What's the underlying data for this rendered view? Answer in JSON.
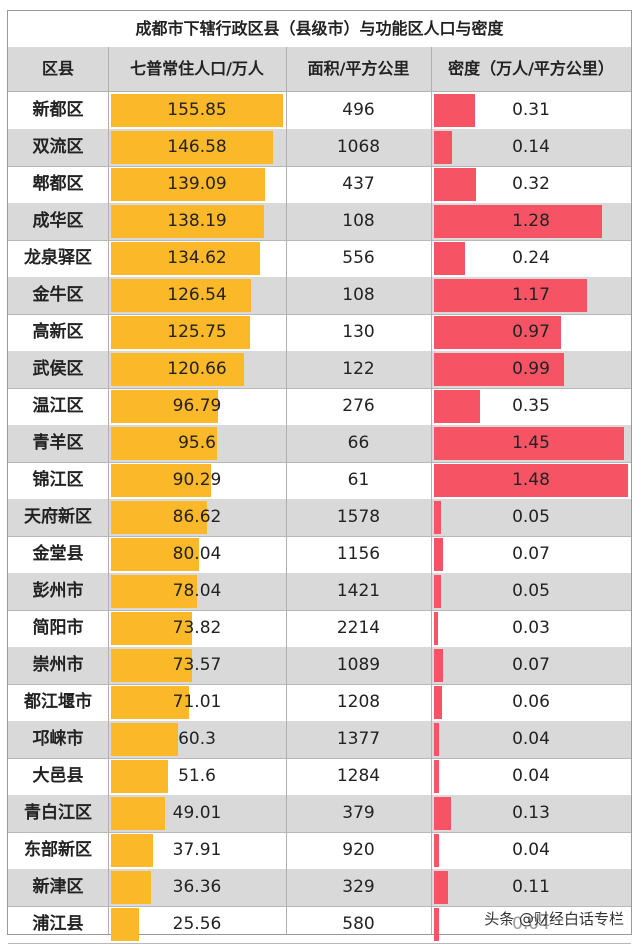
{
  "chart_data": {
    "type": "table",
    "title": "成都市下辖行政区县（县级市）与功能区人口与密度",
    "columns": [
      "区县",
      "七普常住人口/万人",
      "面积/平方公里",
      "密度（万人/平方公里）"
    ],
    "pop_max": 155.85,
    "den_max": 1.48,
    "rows": [
      {
        "name": "新都区",
        "population": "155.85",
        "area": "496",
        "density": "0.31"
      },
      {
        "name": "双流区",
        "population": "146.58",
        "area": "1068",
        "density": "0.14"
      },
      {
        "name": "郫都区",
        "population": "139.09",
        "area": "437",
        "density": "0.32"
      },
      {
        "name": "成华区",
        "population": "138.19",
        "area": "108",
        "density": "1.28"
      },
      {
        "name": "龙泉驿区",
        "population": "134.62",
        "area": "556",
        "density": "0.24"
      },
      {
        "name": "金牛区",
        "population": "126.54",
        "area": "108",
        "density": "1.17"
      },
      {
        "name": "高新区",
        "population": "125.75",
        "area": "130",
        "density": "0.97"
      },
      {
        "name": "武侯区",
        "population": "120.66",
        "area": "122",
        "density": "0.99"
      },
      {
        "name": "温江区",
        "population": "96.79",
        "area": "276",
        "density": "0.35"
      },
      {
        "name": "青羊区",
        "population": "95.6",
        "area": "66",
        "density": "1.45"
      },
      {
        "name": "锦江区",
        "population": "90.29",
        "area": "61",
        "density": "1.48"
      },
      {
        "name": "天府新区",
        "population": "86.62",
        "area": "1578",
        "density": "0.05"
      },
      {
        "name": "金堂县",
        "population": "80.04",
        "area": "1156",
        "density": "0.07"
      },
      {
        "name": "彭州市",
        "population": "78.04",
        "area": "1421",
        "density": "0.05"
      },
      {
        "name": "简阳市",
        "population": "73.82",
        "area": "2214",
        "density": "0.03"
      },
      {
        "name": "崇州市",
        "population": "73.57",
        "area": "1089",
        "density": "0.07"
      },
      {
        "name": "都江堰市",
        "population": "71.01",
        "area": "1208",
        "density": "0.06"
      },
      {
        "name": "邛崃市",
        "population": "60.3",
        "area": "1377",
        "density": "0.04"
      },
      {
        "name": "大邑县",
        "population": "51.6",
        "area": "1284",
        "density": "0.04"
      },
      {
        "name": "青白江区",
        "population": "49.01",
        "area": "379",
        "density": "0.13"
      },
      {
        "name": "东部新区",
        "population": "37.91",
        "area": "920",
        "density": "0.04"
      },
      {
        "name": "新津区",
        "population": "36.36",
        "area": "329",
        "density": "0.11"
      },
      {
        "name": "浦江县",
        "population": "25.56",
        "area": "580",
        "density": "0.04"
      }
    ],
    "colors": {
      "population_bar": "#fbb829",
      "density_bar": "#f65464",
      "alt_row": "#d9d9d9"
    }
  },
  "watermark": "头条 @财经白话专栏"
}
